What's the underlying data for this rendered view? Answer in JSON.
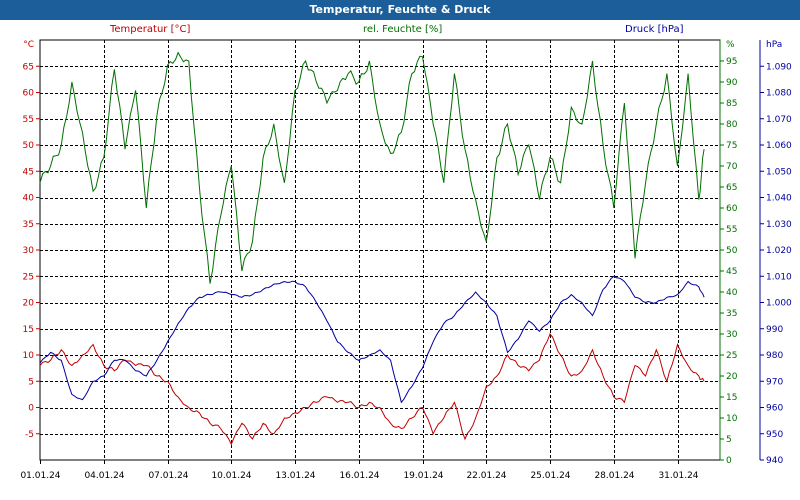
{
  "window": {
    "title": "Temperatur, Feuchte & Druck"
  },
  "chart_data": {
    "type": "line",
    "title": "Temperatur, Feuchte & Druck",
    "x": {
      "range": [
        "2024-01-01",
        "2024-02-02"
      ],
      "tick_labels": [
        "01.01.24",
        "04.01.24",
        "07.01.24",
        "10.01.24",
        "13.01.24",
        "16.01.24",
        "19.01.24",
        "22.01.24",
        "25.01.24",
        "28.01.24",
        "31.01.24"
      ],
      "tick_dates": [
        "2024-01-01",
        "2024-01-04",
        "2024-01-07",
        "2024-01-10",
        "2024-01-13",
        "2024-01-16",
        "2024-01-19",
        "2024-01-22",
        "2024-01-25",
        "2024-01-28",
        "2024-01-31"
      ]
    },
    "axes": {
      "temperature": {
        "unit": "°C",
        "range": [
          -10,
          70
        ],
        "ticks": [
          -5,
          0,
          5,
          10,
          15,
          20,
          25,
          30,
          35,
          40,
          45,
          50,
          55,
          60,
          65
        ],
        "color": "#c00000"
      },
      "humidity": {
        "unit": "%",
        "range": [
          0,
          100
        ],
        "ticks": [
          0,
          5,
          10,
          15,
          20,
          25,
          30,
          35,
          40,
          45,
          50,
          55,
          60,
          65,
          70,
          75,
          80,
          85,
          90,
          95
        ],
        "top_label": "%",
        "color": "#007000"
      },
      "pressure": {
        "unit": "hPa",
        "range": [
          940,
          1100
        ],
        "ticks": [
          "940",
          "950",
          "960",
          "970",
          "980",
          "990",
          "1.000",
          "1.010",
          "1.020",
          "1.030",
          "1.040",
          "1.050",
          "1.060",
          "1.070",
          "1.080",
          "1.090"
        ],
        "color": "#0000a0"
      }
    },
    "grid": true,
    "series": [
      {
        "name": "Temperatur [°C]",
        "axis": "temperature",
        "color": "#c00000",
        "points": [
          [
            "2024-01-01",
            8
          ],
          [
            "2024-01-01T12",
            9
          ],
          [
            "2024-01-02",
            11
          ],
          [
            "2024-01-02T12",
            8
          ],
          [
            "2024-01-03",
            10
          ],
          [
            "2024-01-03T12",
            12
          ],
          [
            "2024-01-04",
            8
          ],
          [
            "2024-01-04T12",
            7
          ],
          [
            "2024-01-05",
            9
          ],
          [
            "2024-01-05T12",
            8
          ],
          [
            "2024-01-06",
            8
          ],
          [
            "2024-01-06T12",
            6
          ],
          [
            "2024-01-07",
            5
          ],
          [
            "2024-01-07T12",
            2
          ],
          [
            "2024-01-08",
            0
          ],
          [
            "2024-01-08T12",
            -1
          ],
          [
            "2024-01-09",
            -3
          ],
          [
            "2024-01-09T12",
            -4
          ],
          [
            "2024-01-10",
            -7
          ],
          [
            "2024-01-10T12",
            -3
          ],
          [
            "2024-01-11",
            -6
          ],
          [
            "2024-01-11T12",
            -3
          ],
          [
            "2024-01-12",
            -5
          ],
          [
            "2024-01-12T12",
            -2
          ],
          [
            "2024-01-13",
            -1
          ],
          [
            "2024-01-13T12",
            0
          ],
          [
            "2024-01-14",
            1
          ],
          [
            "2024-01-14T12",
            2
          ],
          [
            "2024-01-15",
            1
          ],
          [
            "2024-01-15T12",
            1
          ],
          [
            "2024-01-16",
            0
          ],
          [
            "2024-01-16T12",
            1
          ],
          [
            "2024-01-17",
            0
          ],
          [
            "2024-01-17T12",
            -3
          ],
          [
            "2024-01-18",
            -4
          ],
          [
            "2024-01-18T12",
            -2
          ],
          [
            "2024-01-19",
            0
          ],
          [
            "2024-01-19T12",
            -5
          ],
          [
            "2024-01-20",
            -2
          ],
          [
            "2024-01-20T12",
            1
          ],
          [
            "2024-01-21",
            -6
          ],
          [
            "2024-01-21T12",
            -2
          ],
          [
            "2024-01-22",
            4
          ],
          [
            "2024-01-22T12",
            6
          ],
          [
            "2024-01-23",
            10
          ],
          [
            "2024-01-23T12",
            8
          ],
          [
            "2024-01-24",
            7
          ],
          [
            "2024-01-24T12",
            9
          ],
          [
            "2024-01-25",
            14
          ],
          [
            "2024-01-25T12",
            10
          ],
          [
            "2024-01-26",
            6
          ],
          [
            "2024-01-26T12",
            7
          ],
          [
            "2024-01-27",
            11
          ],
          [
            "2024-01-27T12",
            6
          ],
          [
            "2024-01-28",
            2
          ],
          [
            "2024-01-28T12",
            1
          ],
          [
            "2024-01-29",
            8
          ],
          [
            "2024-01-29T12",
            6
          ],
          [
            "2024-01-30",
            11
          ],
          [
            "2024-01-30T12",
            5
          ],
          [
            "2024-01-31",
            12
          ],
          [
            "2024-01-31T12",
            8
          ],
          [
            "2024-02-01",
            6
          ],
          [
            "2024-02-01T06",
            5
          ]
        ]
      },
      {
        "name": "rel. Feuchte [%]",
        "axis": "humidity",
        "color": "#007000",
        "points": [
          [
            "2024-01-01",
            66
          ],
          [
            "2024-01-01T12",
            70
          ],
          [
            "2024-01-02",
            75
          ],
          [
            "2024-01-02T12",
            90
          ],
          [
            "2024-01-03",
            78
          ],
          [
            "2024-01-03T12",
            64
          ],
          [
            "2024-01-04",
            72
          ],
          [
            "2024-01-04T12",
            93
          ],
          [
            "2024-01-05",
            74
          ],
          [
            "2024-01-05T12",
            88
          ],
          [
            "2024-01-06",
            60
          ],
          [
            "2024-01-06T12",
            82
          ],
          [
            "2024-01-07",
            94
          ],
          [
            "2024-01-07T12",
            97
          ],
          [
            "2024-01-08",
            95
          ],
          [
            "2024-01-08T12",
            65
          ],
          [
            "2024-01-09",
            42
          ],
          [
            "2024-01-09T12",
            58
          ],
          [
            "2024-01-10",
            70
          ],
          [
            "2024-01-10T12",
            45
          ],
          [
            "2024-01-11",
            52
          ],
          [
            "2024-01-11T12",
            72
          ],
          [
            "2024-01-12",
            80
          ],
          [
            "2024-01-12T12",
            66
          ],
          [
            "2024-01-13",
            88
          ],
          [
            "2024-01-13T12",
            95
          ],
          [
            "2024-01-14",
            90
          ],
          [
            "2024-01-14T12",
            85
          ],
          [
            "2024-01-15",
            88
          ],
          [
            "2024-01-15T12",
            92
          ],
          [
            "2024-01-16",
            90
          ],
          [
            "2024-01-16T12",
            95
          ],
          [
            "2024-01-17",
            80
          ],
          [
            "2024-01-17T12",
            73
          ],
          [
            "2024-01-18",
            78
          ],
          [
            "2024-01-18T12",
            92
          ],
          [
            "2024-01-19",
            96
          ],
          [
            "2024-01-19T12",
            80
          ],
          [
            "2024-01-20",
            66
          ],
          [
            "2024-01-20T12",
            92
          ],
          [
            "2024-01-21",
            74
          ],
          [
            "2024-01-21T12",
            62
          ],
          [
            "2024-01-22",
            52
          ],
          [
            "2024-01-22T12",
            72
          ],
          [
            "2024-01-23",
            80
          ],
          [
            "2024-01-23T12",
            68
          ],
          [
            "2024-01-24",
            75
          ],
          [
            "2024-01-24T12",
            62
          ],
          [
            "2024-01-25",
            72
          ],
          [
            "2024-01-25T12",
            66
          ],
          [
            "2024-01-26",
            84
          ],
          [
            "2024-01-26T12",
            80
          ],
          [
            "2024-01-27",
            95
          ],
          [
            "2024-01-27T12",
            75
          ],
          [
            "2024-01-28",
            60
          ],
          [
            "2024-01-28T12",
            85
          ],
          [
            "2024-01-29",
            48
          ],
          [
            "2024-01-29T12",
            66
          ],
          [
            "2024-01-30",
            80
          ],
          [
            "2024-01-30T12",
            92
          ],
          [
            "2024-01-31",
            70
          ],
          [
            "2024-01-31T12",
            92
          ],
          [
            "2024-02-01",
            62
          ],
          [
            "2024-02-01T06",
            74
          ]
        ]
      },
      {
        "name": "Druck [hPa]",
        "axis": "pressure",
        "color": "#0000a0",
        "points": [
          [
            "2024-01-01",
            977
          ],
          [
            "2024-01-01T12",
            981
          ],
          [
            "2024-01-02",
            978
          ],
          [
            "2024-01-02T12",
            965
          ],
          [
            "2024-01-03",
            963
          ],
          [
            "2024-01-03T12",
            970
          ],
          [
            "2024-01-04",
            972
          ],
          [
            "2024-01-04T12",
            978
          ],
          [
            "2024-01-05",
            978
          ],
          [
            "2024-01-05T12",
            974
          ],
          [
            "2024-01-06",
            972
          ],
          [
            "2024-01-06T12",
            978
          ],
          [
            "2024-01-07",
            985
          ],
          [
            "2024-01-07T12",
            992
          ],
          [
            "2024-01-08",
            998
          ],
          [
            "2024-01-08T12",
            1002
          ],
          [
            "2024-01-09",
            1003
          ],
          [
            "2024-01-09T12",
            1004
          ],
          [
            "2024-01-10",
            1003
          ],
          [
            "2024-01-10T12",
            1002
          ],
          [
            "2024-01-11",
            1003
          ],
          [
            "2024-01-11T12",
            1005
          ],
          [
            "2024-01-12",
            1007
          ],
          [
            "2024-01-12T12",
            1008
          ],
          [
            "2024-01-13",
            1008
          ],
          [
            "2024-01-13T12",
            1006
          ],
          [
            "2024-01-14",
            1000
          ],
          [
            "2024-01-14T12",
            993
          ],
          [
            "2024-01-15",
            985
          ],
          [
            "2024-01-15T12",
            981
          ],
          [
            "2024-01-16",
            978
          ],
          [
            "2024-01-16T12",
            980
          ],
          [
            "2024-01-17",
            982
          ],
          [
            "2024-01-17T12",
            978
          ],
          [
            "2024-01-18",
            962
          ],
          [
            "2024-01-18T12",
            968
          ],
          [
            "2024-01-19",
            975
          ],
          [
            "2024-01-19T12",
            985
          ],
          [
            "2024-01-20",
            992
          ],
          [
            "2024-01-20T12",
            995
          ],
          [
            "2024-01-21",
            1000
          ],
          [
            "2024-01-21T12",
            1004
          ],
          [
            "2024-01-22",
            1000
          ],
          [
            "2024-01-22T12",
            995
          ],
          [
            "2024-01-23",
            981
          ],
          [
            "2024-01-23T12",
            986
          ],
          [
            "2024-01-24",
            993
          ],
          [
            "2024-01-24T12",
            989
          ],
          [
            "2024-01-25",
            993
          ],
          [
            "2024-01-25T12",
            1000
          ],
          [
            "2024-01-26",
            1003
          ],
          [
            "2024-01-26T12",
            1000
          ],
          [
            "2024-01-27",
            995
          ],
          [
            "2024-01-27T12",
            1005
          ],
          [
            "2024-01-28",
            1010
          ],
          [
            "2024-01-28T12",
            1008
          ],
          [
            "2024-01-29",
            1002
          ],
          [
            "2024-01-29T12",
            1000
          ],
          [
            "2024-01-30",
            1000
          ],
          [
            "2024-01-30T12",
            1002
          ],
          [
            "2024-01-31",
            1003
          ],
          [
            "2024-01-31T12",
            1008
          ],
          [
            "2024-02-01",
            1006
          ],
          [
            "2024-02-01T06",
            1002
          ]
        ]
      }
    ]
  }
}
